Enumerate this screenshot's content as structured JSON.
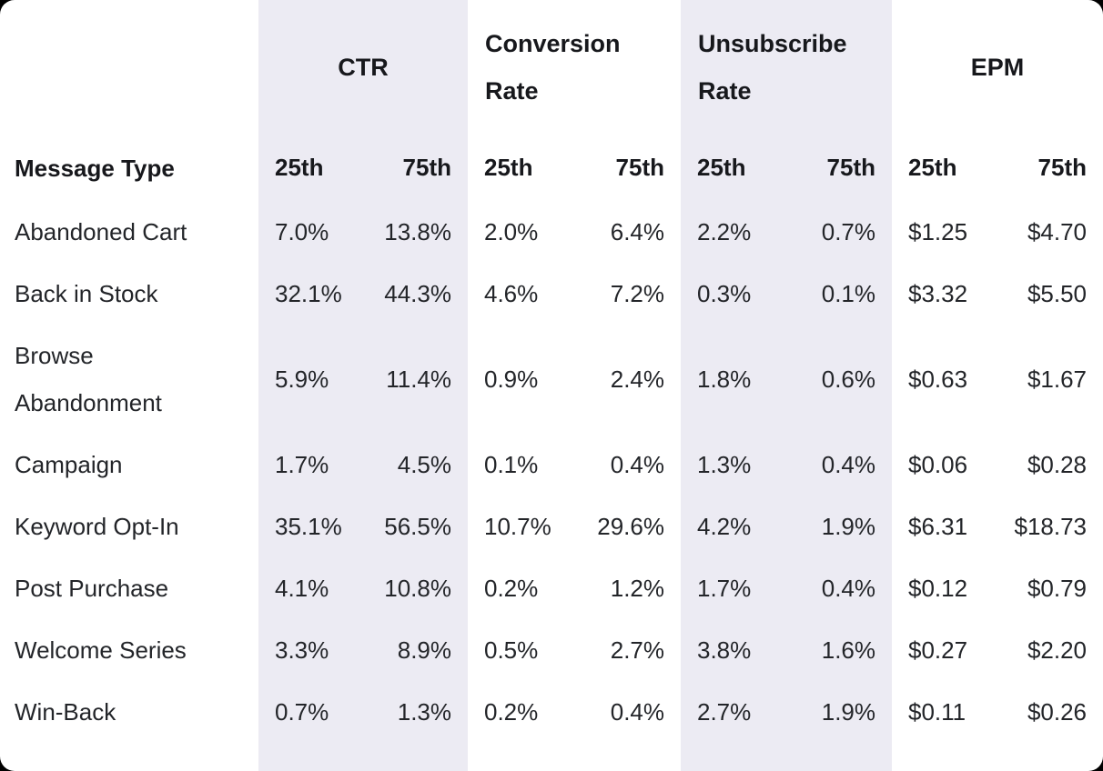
{
  "chart_data": {
    "type": "table",
    "row_header": "Message Type",
    "column_groups": [
      {
        "label": "CTR",
        "shaded": true
      },
      {
        "label": "Conversion Rate",
        "shaded": false
      },
      {
        "label": "Unsubscribe Rate",
        "shaded": true
      },
      {
        "label": "EPM",
        "shaded": false
      }
    ],
    "subheaders": [
      "25th",
      "75th"
    ],
    "rows": [
      {
        "label": "Abandoned Cart",
        "values": [
          "7.0%",
          "13.8%",
          "2.0%",
          "6.4%",
          "2.2%",
          "0.7%",
          "$1.25",
          "$4.70"
        ]
      },
      {
        "label": "Back in Stock",
        "values": [
          "32.1%",
          "44.3%",
          "4.6%",
          "7.2%",
          "0.3%",
          "0.1%",
          "$3.32",
          "$5.50"
        ]
      },
      {
        "label": "Browse Abandonment",
        "values": [
          "5.9%",
          "11.4%",
          "0.9%",
          "2.4%",
          "1.8%",
          "0.6%",
          "$0.63",
          "$1.67"
        ]
      },
      {
        "label": "Campaign",
        "values": [
          "1.7%",
          "4.5%",
          "0.1%",
          "0.4%",
          "1.3%",
          "0.4%",
          "$0.06",
          "$0.28"
        ]
      },
      {
        "label": "Keyword Opt-In",
        "values": [
          "35.1%",
          "56.5%",
          "10.7%",
          "29.6%",
          "4.2%",
          "1.9%",
          "$6.31",
          "$18.73"
        ]
      },
      {
        "label": "Post Purchase",
        "values": [
          "4.1%",
          "10.8%",
          "0.2%",
          "1.2%",
          "1.7%",
          "0.4%",
          "$0.12",
          "$0.79"
        ]
      },
      {
        "label": "Welcome Series",
        "values": [
          "3.3%",
          "8.9%",
          "0.5%",
          "2.7%",
          "3.8%",
          "1.6%",
          "$0.27",
          "$2.20"
        ]
      },
      {
        "label": "Win-Back",
        "values": [
          "0.7%",
          "1.3%",
          "0.2%",
          "0.4%",
          "2.7%",
          "1.9%",
          "$0.11",
          "$0.26"
        ]
      }
    ]
  },
  "colors": {
    "stripe_band": "#ECEBF3",
    "card_background": "#ffffff",
    "page_background": "#000000",
    "text": "#17181c"
  }
}
